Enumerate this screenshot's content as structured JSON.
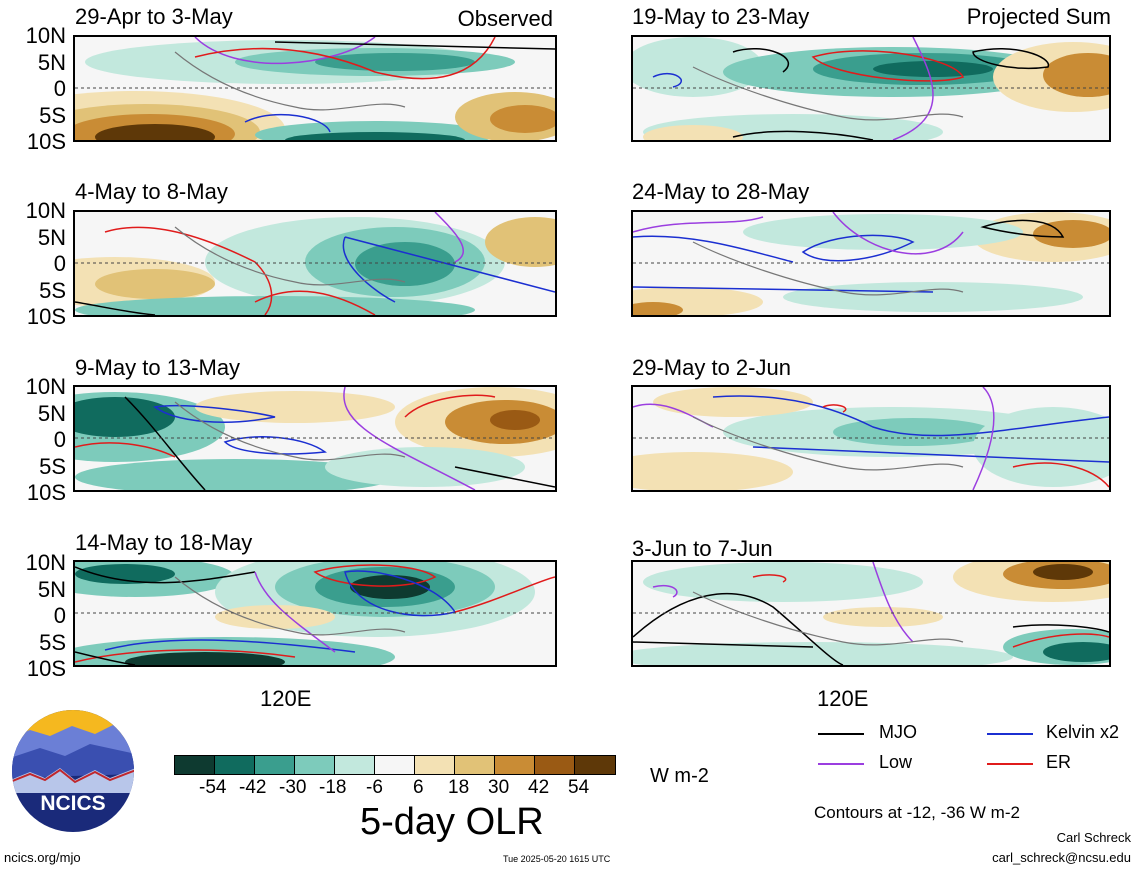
{
  "panels": [
    {
      "title": "29-Apr to 3-May",
      "tag": "Observed"
    },
    {
      "title": "19-May to 23-May",
      "tag": "Projected Sum"
    },
    {
      "title": "4-May to 8-May",
      "tag": ""
    },
    {
      "title": "24-May to 28-May",
      "tag": ""
    },
    {
      "title": "9-May to 13-May",
      "tag": ""
    },
    {
      "title": "29-May to 2-Jun",
      "tag": ""
    },
    {
      "title": "14-May to 18-May",
      "tag": ""
    },
    {
      "title": "3-Jun to 7-Jun",
      "tag": ""
    }
  ],
  "lat_labels": [
    "10N",
    "5N",
    "0",
    "5S",
    "10S"
  ],
  "lon_label": "120E",
  "colorbar": {
    "ticks": [
      "-54",
      "-42",
      "-30",
      "-18",
      "-6",
      "6",
      "18",
      "30",
      "42",
      "54"
    ],
    "colors": [
      "#0e3a30",
      "#106b5e",
      "#3a9e8e",
      "#7dcbbb",
      "#c2e8dd",
      "#f6f6f6",
      "#f3e1b4",
      "#e1c277",
      "#c98c35",
      "#9a5a14",
      "#5e3808"
    ],
    "units": "W m-2",
    "title": "5-day OLR"
  },
  "legend": {
    "mjo": {
      "label": "MJO",
      "color": "#000000"
    },
    "kelvin": {
      "label": "Kelvin x2",
      "color": "#1b2fd1"
    },
    "low": {
      "label": "Low",
      "color": "#9b3ee0"
    },
    "er": {
      "label": "ER",
      "color": "#e01b1b"
    },
    "note": "Contours at -12, -36 W m-2"
  },
  "footer": {
    "url": "ncics.org/mjo",
    "timestamp": "Tue 2025-05-20 1615 UTC",
    "author": "Carl Schreck",
    "email": "carl_schreck@ncsu.edu",
    "logo_text": "NCICS"
  }
}
